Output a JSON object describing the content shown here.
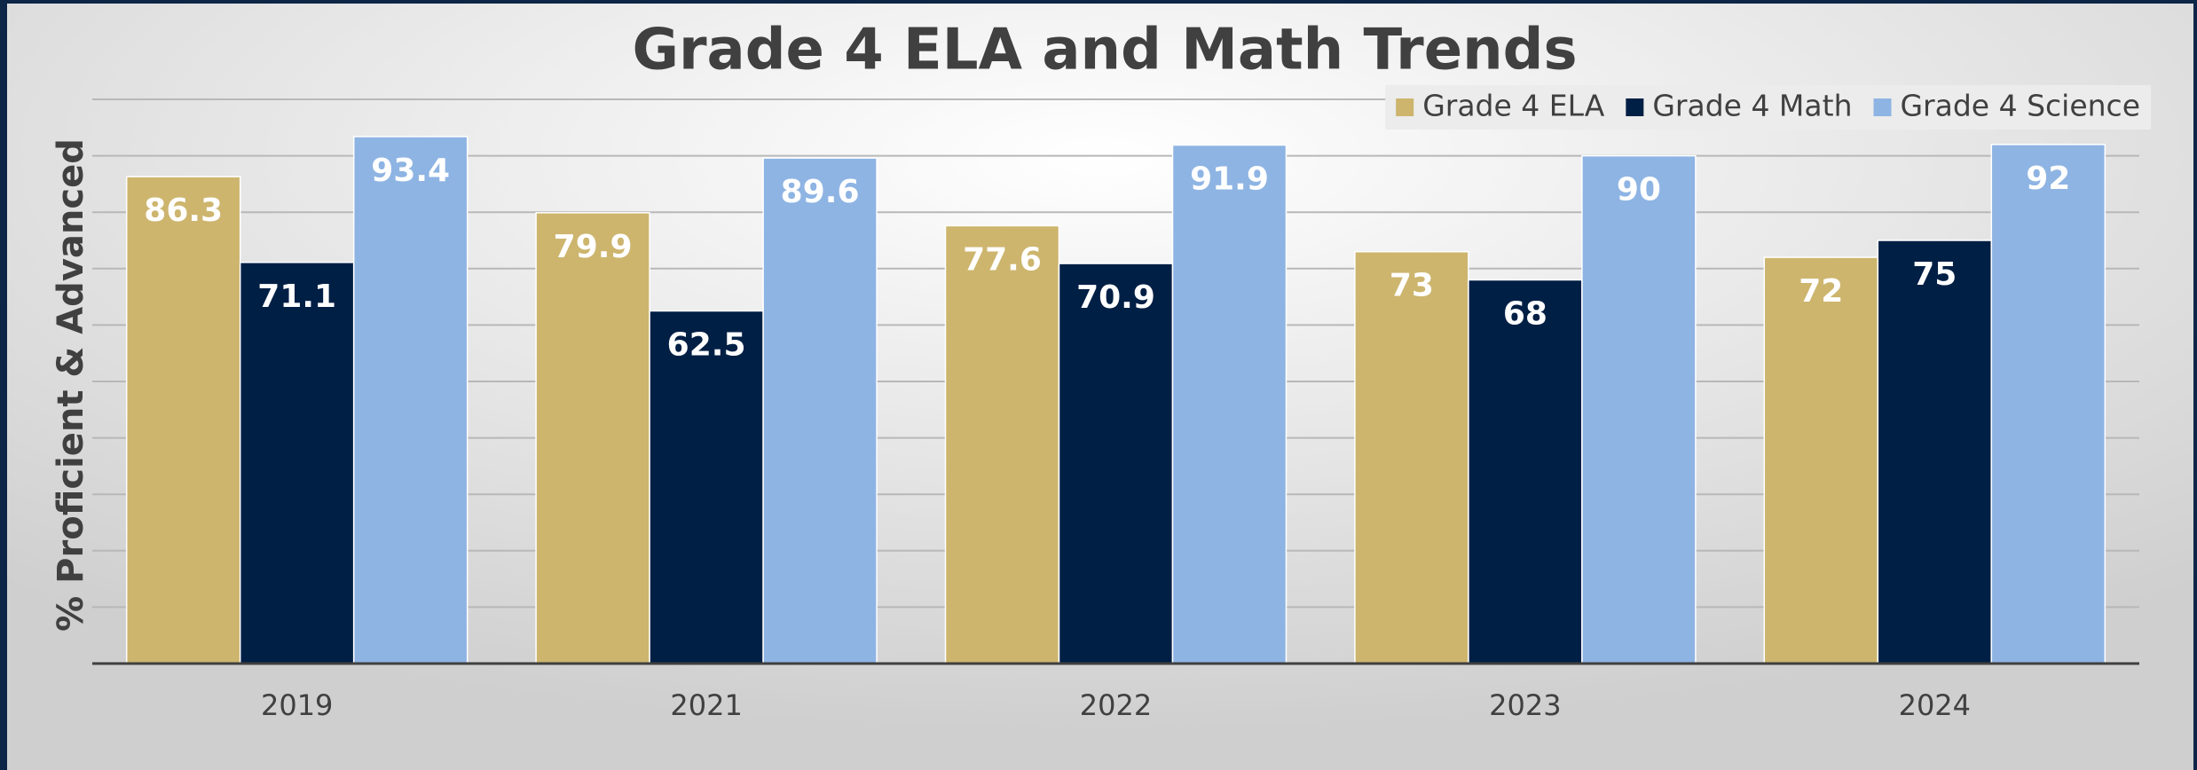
{
  "chart_data": {
    "type": "bar",
    "title": "Grade 4 ELA and Math Trends",
    "ylabel": "% Proficient & Advanced",
    "categories": [
      "2019",
      "2021",
      "2022",
      "2023",
      "2024"
    ],
    "series": [
      {
        "name": "Grade 4 ELA",
        "color": "#cdb56e",
        "values": [
          86.3,
          79.9,
          77.6,
          73,
          72
        ]
      },
      {
        "name": "Grade 4 Math",
        "color": "#001f45",
        "values": [
          71.1,
          62.5,
          70.9,
          68,
          75
        ]
      },
      {
        "name": "Grade 4 Science",
        "color": "#8eb4e3",
        "values": [
          93.4,
          89.6,
          91.9,
          90,
          92
        ]
      }
    ],
    "ylim": [
      0,
      100
    ],
    "yticks": [
      0,
      10,
      20,
      30,
      40,
      50,
      60,
      70,
      80,
      90,
      100
    ],
    "grid": true,
    "legend": "top-right"
  }
}
